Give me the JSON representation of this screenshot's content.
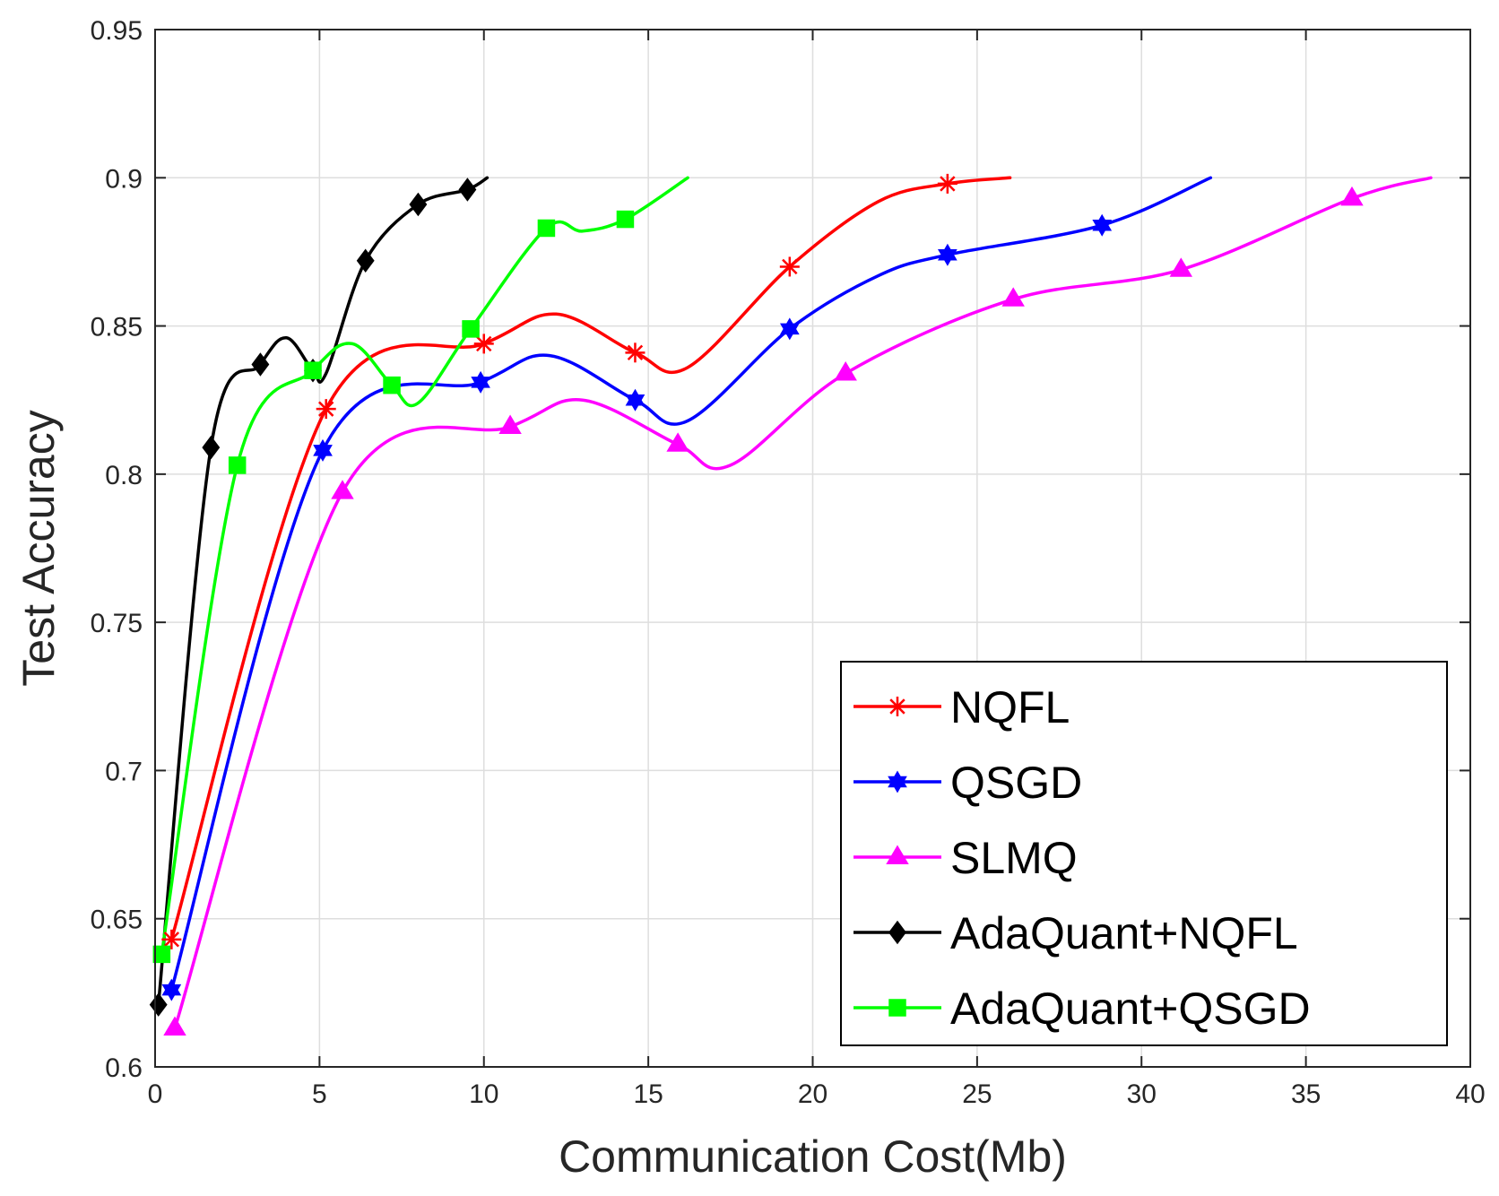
{
  "chart_data": {
    "type": "line",
    "title": "",
    "xlabel": "Communication Cost(Mb)",
    "ylabel": "Test Accuracy",
    "xlim": [
      0,
      40
    ],
    "ylim": [
      0.6,
      0.95
    ],
    "xticks": [
      0,
      5,
      10,
      15,
      20,
      25,
      30,
      35,
      40
    ],
    "xtick_labels": [
      "0",
      "5",
      "10",
      "15",
      "20",
      "25",
      "30",
      "35",
      "40"
    ],
    "yticks": [
      0.6,
      0.65,
      0.7,
      0.75,
      0.8,
      0.85,
      0.9,
      0.95
    ],
    "ytick_labels": [
      "0.6",
      "0.65",
      "0.7",
      "0.75",
      "0.8",
      "0.85",
      "0.9",
      "0.95"
    ],
    "grid": true,
    "legend_position": "bottom-right",
    "series": [
      {
        "name": "NQFL",
        "color": "#ff0000",
        "marker": "asterisk",
        "x": [
          0.5,
          5.2,
          10.0,
          12.2,
          14.6,
          16.2,
          19.3,
          22.0,
          24.1,
          26.0
        ],
        "y": [
          0.643,
          0.822,
          0.844,
          0.854,
          0.841,
          0.836,
          0.87,
          0.892,
          0.898,
          0.9
        ],
        "marker_x": [
          0.5,
          5.2,
          10.0,
          14.6,
          19.3,
          24.1
        ],
        "marker_y": [
          0.643,
          0.822,
          0.844,
          0.841,
          0.87,
          0.898
        ]
      },
      {
        "name": "QSGD",
        "color": "#0000ff",
        "marker": "hexagram",
        "x": [
          0.5,
          5.1,
          9.9,
          12.0,
          14.6,
          16.2,
          19.3,
          22.0,
          24.1,
          28.8,
          32.1
        ],
        "y": [
          0.626,
          0.808,
          0.831,
          0.84,
          0.825,
          0.818,
          0.849,
          0.867,
          0.874,
          0.884,
          0.9
        ],
        "marker_x": [
          0.5,
          5.1,
          9.9,
          14.6,
          19.3,
          24.1,
          28.8
        ],
        "marker_y": [
          0.626,
          0.808,
          0.831,
          0.825,
          0.849,
          0.874,
          0.884
        ]
      },
      {
        "name": "SLMQ",
        "color": "#ff00ff",
        "marker": "triangle",
        "x": [
          0.6,
          5.7,
          10.8,
          13.0,
          15.9,
          17.5,
          21.0,
          26.1,
          31.2,
          36.4,
          38.8
        ],
        "y": [
          0.613,
          0.794,
          0.816,
          0.825,
          0.81,
          0.803,
          0.834,
          0.859,
          0.869,
          0.893,
          0.9
        ],
        "marker_x": [
          0.6,
          5.7,
          10.8,
          15.9,
          21.0,
          26.1,
          31.2,
          36.4
        ],
        "marker_y": [
          0.613,
          0.794,
          0.816,
          0.81,
          0.834,
          0.859,
          0.869,
          0.893
        ]
      },
      {
        "name": "AdaQuant+NQFL",
        "color": "#000000",
        "marker": "diamond",
        "x": [
          0.1,
          1.7,
          3.2,
          4.0,
          4.8,
          5.2,
          6.4,
          8.0,
          9.5,
          10.1
        ],
        "y": [
          0.621,
          0.809,
          0.837,
          0.846,
          0.835,
          0.834,
          0.872,
          0.891,
          0.896,
          0.9
        ],
        "marker_x": [
          0.1,
          1.7,
          3.2,
          4.8,
          6.4,
          8.0,
          9.5
        ],
        "marker_y": [
          0.621,
          0.809,
          0.837,
          0.835,
          0.872,
          0.891,
          0.896
        ]
      },
      {
        "name": "AdaQuant+QSGD",
        "color": "#00ff00",
        "marker": "square",
        "x": [
          0.2,
          2.5,
          4.8,
          6.0,
          7.2,
          8.0,
          9.6,
          11.9,
          13.0,
          14.3,
          16.2
        ],
        "y": [
          0.638,
          0.803,
          0.835,
          0.844,
          0.83,
          0.824,
          0.849,
          0.883,
          0.882,
          0.886,
          0.9
        ],
        "marker_x": [
          0.2,
          2.5,
          4.8,
          7.2,
          9.6,
          11.9,
          14.3
        ],
        "marker_y": [
          0.638,
          0.803,
          0.835,
          0.83,
          0.849,
          0.883,
          0.886
        ]
      }
    ]
  }
}
